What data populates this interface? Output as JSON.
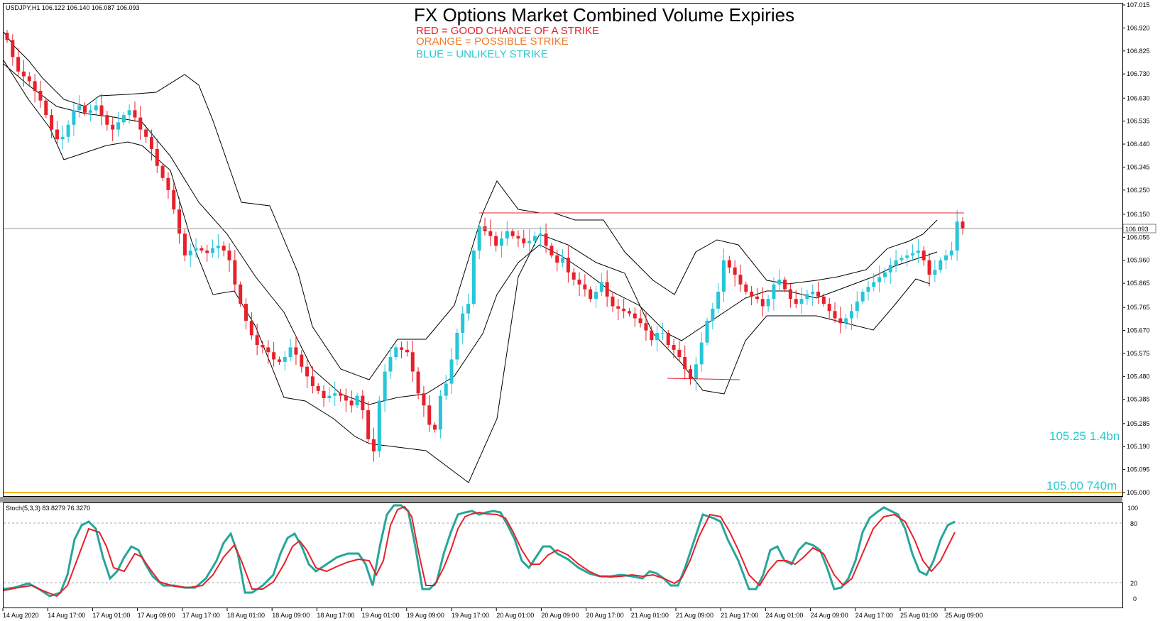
{
  "chart_data": {
    "type": "candlestick",
    "symbol_info": "USDJPY,H1  106.122 106.140 106.087 106.093",
    "title": "FX Options Market Combined Volume Expiries",
    "legend": [
      {
        "text": "RED = GOOD CHANCE OF A STRIKE",
        "color": "#e8202a"
      },
      {
        "text": "ORANGE = POSSIBLE STRIKE",
        "color": "#f07a2a"
      },
      {
        "text": "BLUE = UNLIKELY STRIKE",
        "color": "#28c8d0"
      }
    ],
    "price_axis": {
      "min": 105.0,
      "max": 107.015,
      "ticks": [
        "107.015",
        "106.920",
        "106.825",
        "106.730",
        "106.630",
        "106.535",
        "106.440",
        "106.345",
        "106.250",
        "106.150",
        "106.055",
        "105.960",
        "105.865",
        "105.765",
        "105.670",
        "105.575",
        "105.480",
        "105.385",
        "105.285",
        "105.190",
        "105.095",
        "105.000"
      ],
      "current_price": "106.093"
    },
    "time_labels": [
      "14 Aug 2020",
      "14 Aug 17:00",
      "17 Aug 01:00",
      "17 Aug 09:00",
      "17 Aug 17:00",
      "18 Aug 01:00",
      "18 Aug 09:00",
      "18 Aug 17:00",
      "19 Aug 01:00",
      "19 Aug 09:00",
      "19 Aug 17:00",
      "20 Aug 01:00",
      "20 Aug 09:00",
      "20 Aug 17:00",
      "21 Aug 01:00",
      "21 Aug 09:00",
      "21 Aug 17:00",
      "24 Aug 01:00",
      "24 Aug 09:00",
      "24 Aug 17:00",
      "25 Aug 01:00",
      "25 Aug 09:00"
    ],
    "expiries": [
      {
        "label": "105.25 1.4bn",
        "price": 105.25,
        "color": "#28c8d0"
      },
      {
        "label": "105.00 740m",
        "price": 105.0,
        "color": "#28c8d0"
      }
    ],
    "level_lines": [
      {
        "price": 106.17,
        "color": "#e8202a"
      },
      {
        "price": 105.475,
        "color": "#e8202a"
      },
      {
        "price": 105.0,
        "color": "#f0b400"
      }
    ],
    "close": [
      106.87,
      106.8,
      106.74,
      106.72,
      106.7,
      106.66,
      106.62,
      106.56,
      106.5,
      106.46,
      106.47,
      106.52,
      106.58,
      106.6,
      106.57,
      106.58,
      106.6,
      106.56,
      106.52,
      106.5,
      106.53,
      106.56,
      106.58,
      106.55,
      106.5,
      106.47,
      106.42,
      106.35,
      106.3,
      106.25,
      106.17,
      106.07,
      105.98,
      106.0,
      106.01,
      106.0,
      105.99,
      106.01,
      106.02,
      106.0,
      105.96,
      105.86,
      105.78,
      105.71,
      105.65,
      105.61,
      105.6,
      105.58,
      105.55,
      105.54,
      105.56,
      105.6,
      105.57,
      105.52,
      105.48,
      105.44,
      105.42,
      105.39,
      105.4,
      105.41,
      105.4,
      105.38,
      105.36,
      105.4,
      105.34,
      105.22,
      105.17,
      105.38,
      105.5,
      105.56,
      105.6,
      105.59,
      105.58,
      105.5,
      105.41,
      105.36,
      105.28,
      105.26,
      105.4,
      105.45,
      105.55,
      105.66,
      105.74,
      105.78,
      106.0,
      106.1,
      106.08,
      106.06,
      106.02,
      106.05,
      106.08,
      106.06,
      106.05,
      106.03,
      106.04,
      106.06,
      106.07,
      106.02,
      105.98,
      105.95,
      105.97,
      105.91,
      105.88,
      105.86,
      105.84,
      105.8,
      105.83,
      105.87,
      105.81,
      105.77,
      105.76,
      105.75,
      105.74,
      105.72,
      105.7,
      105.67,
      105.63,
      105.66,
      105.66,
      105.61,
      105.59,
      105.56,
      105.51,
      105.47,
      105.53,
      105.62,
      105.71,
      105.76,
      105.83,
      105.96,
      105.93,
      105.9,
      105.86,
      105.83,
      105.81,
      105.8,
      105.77,
      105.8,
      105.86,
      105.88,
      105.84,
      105.8,
      105.78,
      105.8,
      105.82,
      105.83,
      105.81,
      105.78,
      105.75,
      105.72,
      105.7,
      105.72,
      105.75,
      105.79,
      105.83,
      105.85,
      105.87,
      105.89,
      105.91,
      105.94,
      105.96,
      105.97,
      105.98,
      105.99,
      106.0,
      105.96,
      105.9,
      105.92,
      105.96,
      105.98,
      106.0,
      106.12,
      106.09
    ]
  }
}
